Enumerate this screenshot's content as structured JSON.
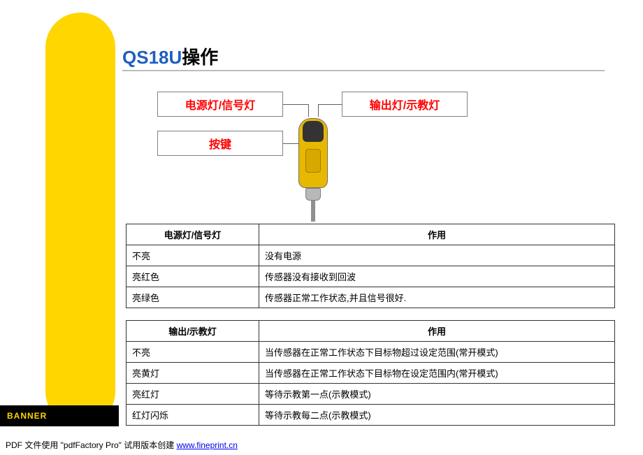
{
  "title": {
    "blue": "QS18U",
    "black": "操作"
  },
  "labels": {
    "power": "电源灯/信号灯",
    "output": "输出灯/示教灯",
    "button": "按键"
  },
  "table1": {
    "headers": [
      "电源灯/信号灯",
      "作用"
    ],
    "rows": [
      [
        "不亮",
        "没有电源"
      ],
      [
        "亮红色",
        "传感器没有接收到回波"
      ],
      [
        "亮绿色",
        "传感器正常工作状态,并且信号很好."
      ]
    ]
  },
  "table2": {
    "headers": [
      "输出/示教灯",
      "作用"
    ],
    "rows": [
      [
        "不亮",
        "当传感器在正常工作状态下目标物超过设定范围(常开模式)"
      ],
      [
        "亮黄灯",
        "当传感器在正常工作状态下目标物在设定范围内(常开模式)"
      ],
      [
        "亮红灯",
        "等待示教第一点(示教模式)"
      ],
      [
        "红灯闪烁",
        "等待示教每二点(示教模式)"
      ]
    ]
  },
  "logo": "BANNER",
  "footer": {
    "prefix": "PDF 文件使用 \"pdfFactory Pro\" 试用版本创建 ",
    "link_text": "www.fineprint.cn"
  },
  "colors": {
    "brand_yellow": "#ffd600",
    "title_blue": "#1f5fbf",
    "label_red": "#ff0000"
  }
}
